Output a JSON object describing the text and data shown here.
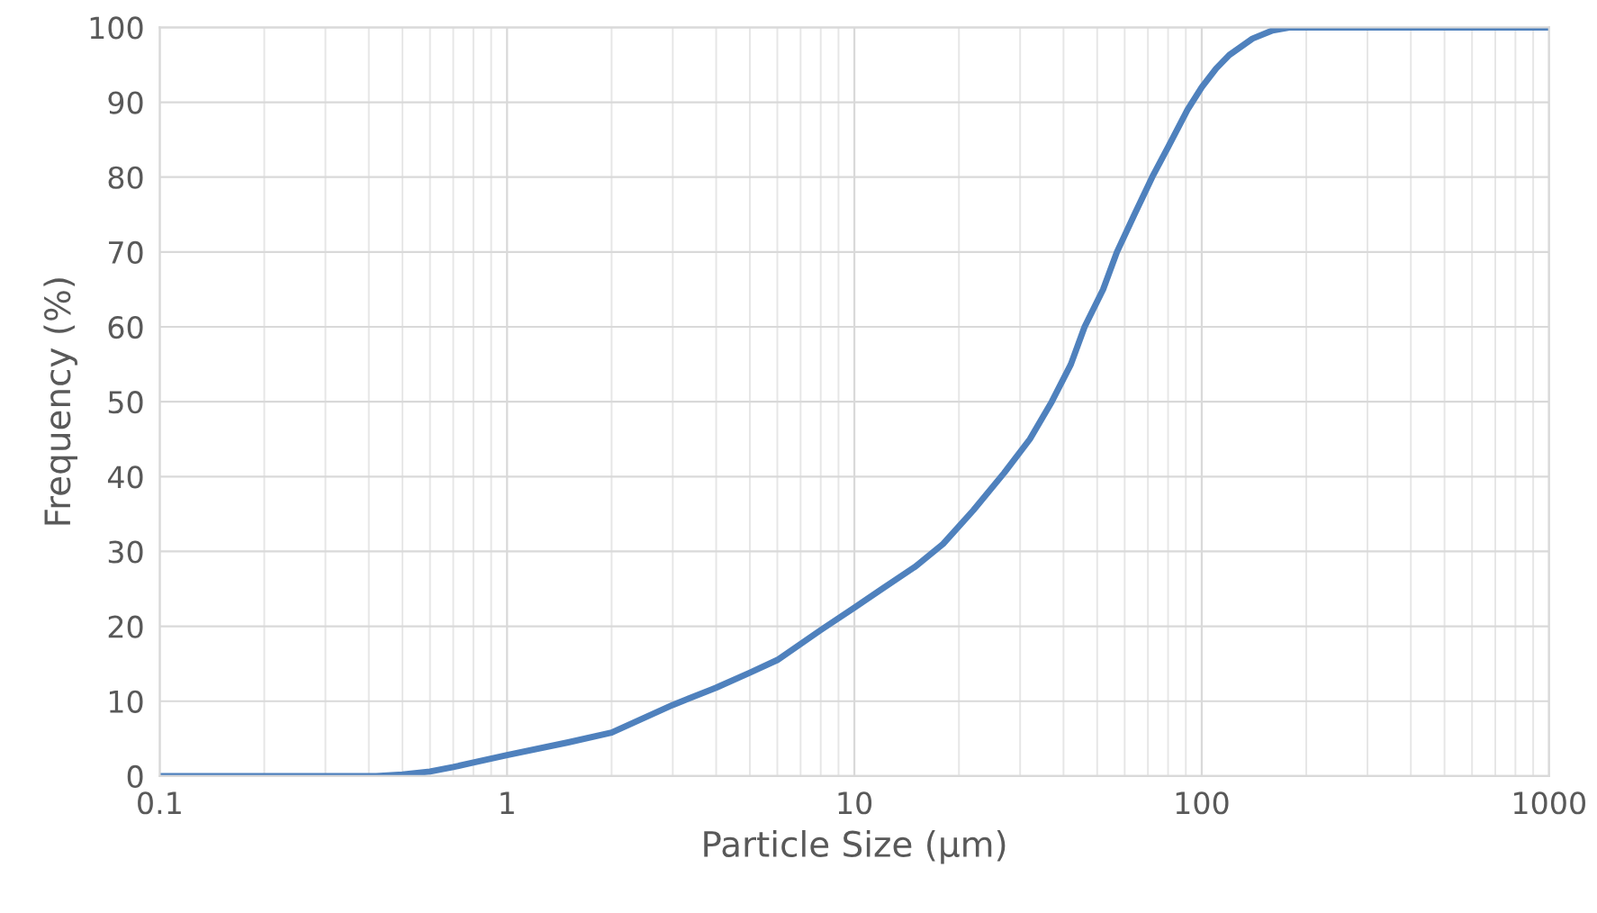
{
  "chart_data": {
    "type": "line",
    "xlabel": "Particle Size (µm)",
    "ylabel": "Frequency (%)",
    "x": [
      0.1,
      0.2,
      0.3,
      0.42,
      0.5,
      0.6,
      0.7,
      0.8,
      1,
      1.5,
      2,
      3,
      4,
      5,
      6,
      8,
      10,
      12,
      15,
      18,
      22,
      27,
      32,
      37,
      42,
      46,
      52,
      57,
      64,
      72,
      80,
      91,
      100,
      110,
      120,
      140,
      160,
      180,
      300,
      1000
    ],
    "series": [
      {
        "color": "#4f81bd",
        "values": [
          0,
          0,
          0,
          0,
          0.2,
          0.6,
          1.2,
          1.8,
          2.8,
          4.5,
          5.8,
          9.5,
          11.8,
          13.8,
          15.5,
          19.5,
          22.5,
          25,
          28,
          31,
          35.5,
          40.5,
          45,
          50,
          55,
          60,
          65,
          70,
          75,
          80,
          84,
          89,
          92,
          94.5,
          96.3,
          98.5,
          99.6,
          100,
          100,
          100
        ]
      }
    ],
    "log": "x",
    "xlim": [
      0.1,
      1000
    ],
    "xticks": [
      0.1,
      1,
      10,
      100,
      1000
    ],
    "ylim": [
      0,
      100
    ],
    "yticks": [
      0,
      10,
      20,
      30,
      40,
      50,
      60,
      70,
      80,
      90,
      100
    ],
    "grid": true,
    "marker": "none",
    "line_style": "solid",
    "legend": false
  }
}
